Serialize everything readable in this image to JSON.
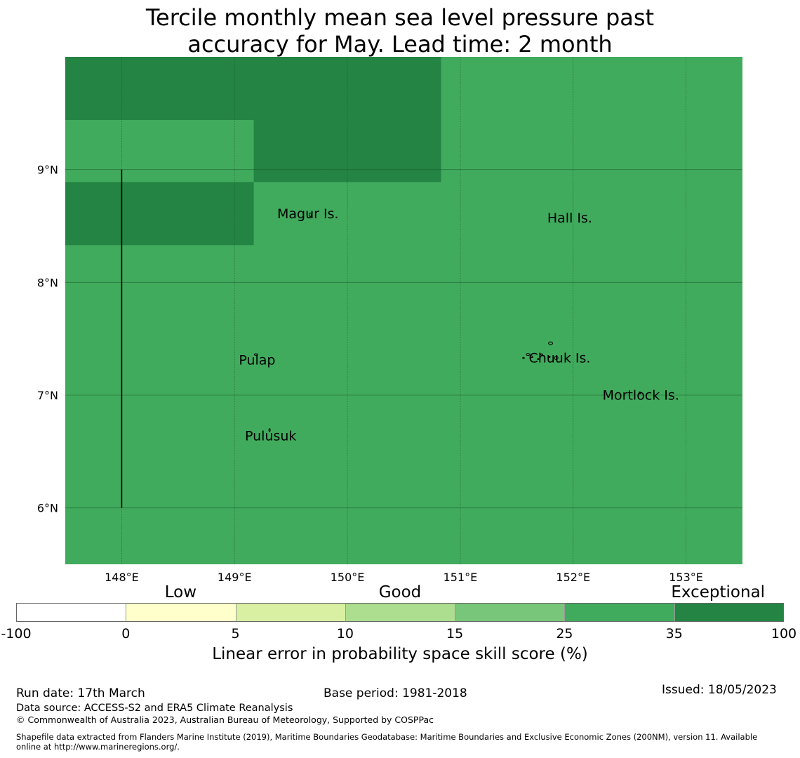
{
  "title": {
    "line1": "Tercile monthly mean sea level pressure past",
    "line2": "accuracy for May. Lead time: 2 month"
  },
  "map": {
    "lon_range": [
      147.5,
      153.5
    ],
    "lat_range": [
      5.5,
      10.0
    ],
    "lon_ticks": [
      {
        "value": 148,
        "label": "148°E"
      },
      {
        "value": 149,
        "label": "149°E"
      },
      {
        "value": 150,
        "label": "150°E"
      },
      {
        "value": 151,
        "label": "151°E"
      },
      {
        "value": 152,
        "label": "152°E"
      },
      {
        "value": 153,
        "label": "153°E"
      }
    ],
    "lat_ticks": [
      {
        "value": 9,
        "label": "9°N"
      },
      {
        "value": 8,
        "label": "8°N"
      },
      {
        "value": 7,
        "label": "7°N"
      },
      {
        "value": 6,
        "label": "6°N"
      }
    ],
    "background_color": "#41ab5d",
    "skill_cells": [
      {
        "lon_min": 147.5,
        "lon_max": 150.83,
        "lat_min": 9.44,
        "lat_max": 10.0,
        "category": "exceptional",
        "color": "#238443"
      },
      {
        "lon_min": 149.17,
        "lon_max": 150.83,
        "lat_min": 8.89,
        "lat_max": 9.44,
        "category": "exceptional",
        "color": "#238443"
      },
      {
        "lon_min": 147.5,
        "lon_max": 149.17,
        "lat_min": 8.33,
        "lat_max": 8.89,
        "category": "exceptional",
        "color": "#238443"
      }
    ],
    "boundary_line": {
      "lon": 148.0,
      "lat_min": 6.0,
      "lat_max": 9.0
    },
    "places": [
      {
        "name": "Magur Is.",
        "lon": 149.65,
        "lat": 8.57
      },
      {
        "name": "Hall Is.",
        "lon": 151.97,
        "lat": 8.53
      },
      {
        "name": "Pulap",
        "lon": 149.2,
        "lat": 7.27
      },
      {
        "name": "Chuuk Is.",
        "lon": 151.88,
        "lat": 7.29
      },
      {
        "name": "Mortlock Is.",
        "lon": 152.6,
        "lat": 6.96
      },
      {
        "name": "Pulusuk",
        "lon": 149.32,
        "lat": 6.6
      }
    ]
  },
  "colorbar": {
    "ticks": [
      "-100",
      "0",
      "5",
      "10",
      "15",
      "25",
      "35",
      "100"
    ],
    "colors": [
      "#ffffff",
      "#ffffcc",
      "#d9f0a3",
      "#addd8e",
      "#78c679",
      "#41ab5d",
      "#238443"
    ],
    "categories": [
      {
        "label": "Low",
        "position": 1.5
      },
      {
        "label": "Good",
        "position": 3.5
      },
      {
        "label": "Exceptional",
        "position": 6.4
      }
    ],
    "title": "Linear error in probability space skill score (%)"
  },
  "footer": {
    "run_date": "Run date: 17th March",
    "base_period": "Base period: 1981-2018",
    "issued": "Issued: 18/05/2023",
    "data_source": "Data source: ACCESS-S2 and ERA5 Climate Reanalysis",
    "copyright": "© Commonwealth of Australia 2023, Australian Bureau of Meteorology, Supported by COSPPac",
    "shapefile_line1": "Shapefile data extracted from Flanders Marine Institute (2019), Maritime Boundaries Geodatabase: Maritime Boundaries and Exclusive Economic Zones (200NM), version 11. Available",
    "shapefile_line2": "online at http://www.marineregions.org/."
  }
}
